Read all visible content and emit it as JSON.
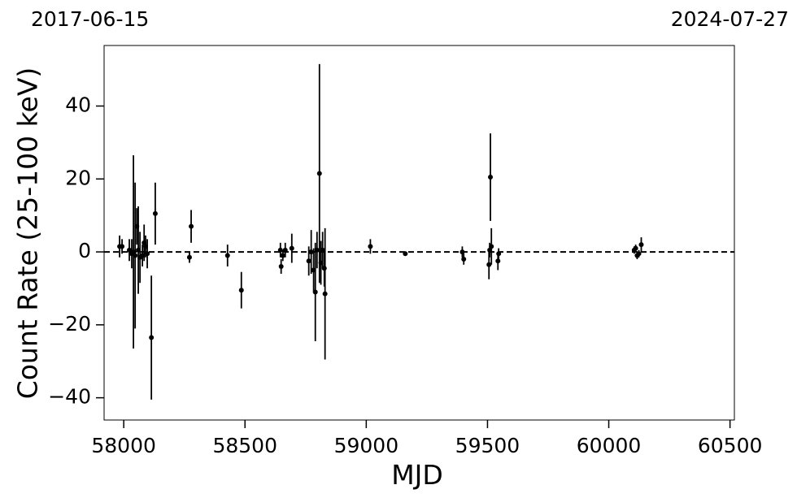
{
  "chart_data": {
    "type": "scatter",
    "x_label": "MJD",
    "y_label": "Count Rate (25-100 keV)",
    "annotations": [
      "2017-06-15",
      "2024-07-27"
    ],
    "color": "#000000",
    "hline": 0,
    "xlim": [
      57919,
      60518
    ],
    "ylim": [
      -46.1,
      56.6
    ],
    "xticks": [
      58000,
      58500,
      59000,
      59500,
      60000,
      60500
    ],
    "yticks": [
      {
        "value": -40,
        "label": "−40"
      },
      {
        "value": -20,
        "label": "−20"
      },
      0,
      20,
      40
    ],
    "x": [
      57983,
      57993,
      58023,
      58033,
      58040,
      58047,
      58054,
      58060,
      58067,
      58077,
      58084,
      58090,
      58097,
      58114,
      58130,
      58271,
      58278,
      58428,
      58485,
      58646,
      58649,
      58656,
      58666,
      58693,
      58763,
      58773,
      58783,
      58790,
      58797,
      58807,
      58813,
      58820,
      58827,
      58830,
      59017,
      59161,
      59396,
      59402,
      59506,
      59509,
      59512,
      59516,
      59543,
      59546,
      60105,
      60111,
      60117,
      60124,
      60134
    ],
    "values": [
      1.5,
      1.5,
      0.5,
      -0.5,
      0,
      -1,
      7,
      0.5,
      -1.5,
      -1,
      2.5,
      1.5,
      -0.5,
      -23.5,
      10.5,
      -1.5,
      7,
      -1,
      -10.5,
      0.5,
      -4,
      -1,
      0.5,
      1,
      -2.5,
      0,
      -5,
      -11,
      0.5,
      21.5,
      -3,
      0.5,
      -4.5,
      -11.5,
      1.5,
      -0.5,
      0,
      -2,
      -3.5,
      0.5,
      20.5,
      1.5,
      -2.5,
      -0.5,
      0.5,
      1,
      -1,
      -0.5,
      2
    ],
    "errors": [
      3,
      2,
      3,
      4,
      26.5,
      20,
      5,
      12,
      7,
      3,
      5,
      3,
      4,
      17,
      8.5,
      1.5,
      4.5,
      3,
      5,
      2,
      2,
      1.5,
      2,
      4,
      4,
      6,
      6,
      13.5,
      5,
      30,
      6,
      5,
      5,
      18,
      2,
      0.5,
      1.5,
      1.5,
      4,
      2,
      12,
      5,
      2.5,
      1.5,
      1,
      1,
      1,
      1,
      2
    ]
  }
}
